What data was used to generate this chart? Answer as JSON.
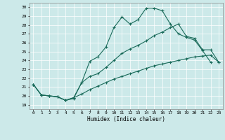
{
  "title": "",
  "xlabel": "Humidex (Indice chaleur)",
  "xlim": [
    -0.5,
    23.5
  ],
  "ylim": [
    18.5,
    30.5
  ],
  "yticks": [
    19,
    20,
    21,
    22,
    23,
    24,
    25,
    26,
    27,
    28,
    29,
    30
  ],
  "xticks": [
    0,
    1,
    2,
    3,
    4,
    5,
    6,
    7,
    8,
    9,
    10,
    11,
    12,
    13,
    14,
    15,
    16,
    17,
    18,
    19,
    20,
    21,
    22,
    23
  ],
  "bg_color": "#cce9e9",
  "line_color": "#1a6b5a",
  "curve1_x": [
    0,
    1,
    2,
    3,
    4,
    5,
    6,
    7,
    8,
    9,
    10,
    11,
    12,
    13,
    14,
    15,
    16,
    17,
    18,
    19,
    20,
    21,
    22
  ],
  "curve1_y": [
    21.3,
    20.1,
    20.0,
    19.9,
    19.5,
    19.7,
    21.5,
    23.9,
    24.4,
    25.5,
    27.7,
    28.9,
    28.1,
    28.6,
    29.9,
    29.9,
    29.6,
    28.1,
    27.0,
    26.6,
    26.3,
    25.1,
    23.8
  ],
  "curve2_x": [
    0,
    1,
    2,
    3,
    4,
    5,
    6,
    7,
    8,
    9,
    10,
    11,
    12,
    13,
    14,
    15,
    16,
    17,
    18,
    19,
    20,
    21,
    22,
    23
  ],
  "curve2_y": [
    21.3,
    20.1,
    20.0,
    19.9,
    19.5,
    19.8,
    21.5,
    22.2,
    22.5,
    23.2,
    24.0,
    24.8,
    25.3,
    25.7,
    26.2,
    26.8,
    27.2,
    27.7,
    28.1,
    26.7,
    26.5,
    25.2,
    25.2,
    23.8
  ],
  "curve3_x": [
    0,
    1,
    2,
    3,
    4,
    5,
    6,
    7,
    8,
    9,
    10,
    11,
    12,
    13,
    14,
    15,
    16,
    17,
    18,
    19,
    20,
    21,
    22,
    23
  ],
  "curve3_y": [
    21.3,
    20.1,
    20.0,
    19.9,
    19.5,
    19.8,
    20.2,
    20.7,
    21.1,
    21.5,
    21.9,
    22.2,
    22.5,
    22.8,
    23.1,
    23.4,
    23.6,
    23.8,
    24.0,
    24.2,
    24.4,
    24.5,
    24.6,
    23.8
  ]
}
